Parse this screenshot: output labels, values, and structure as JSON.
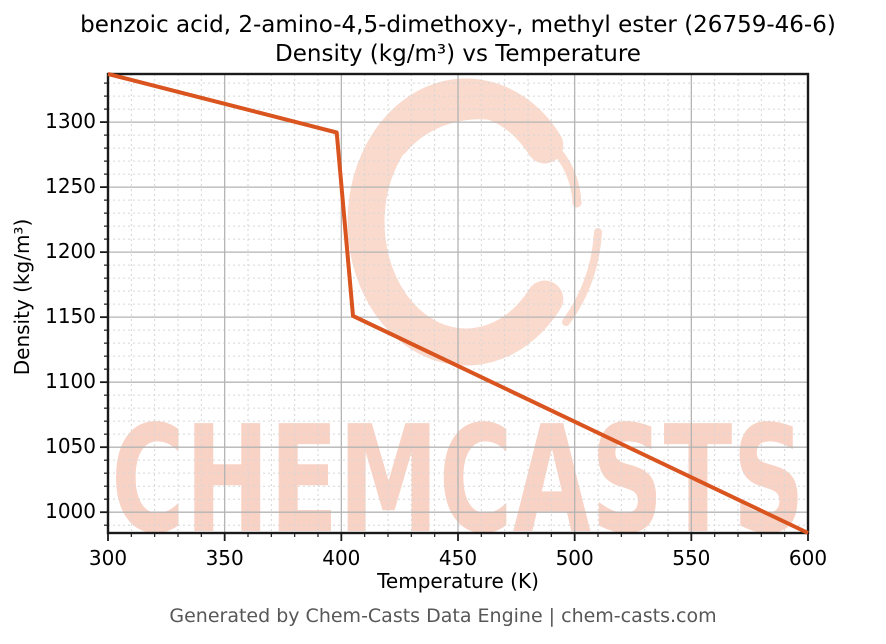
{
  "footer": "Generated by Chem-Casts Data Engine | chem-casts.com",
  "watermark": {
    "text": "CHEMCASTS",
    "logo": "brush-stroke-C",
    "text_color": "#f8d3c5",
    "logo_color": "#f9dacd"
  },
  "chart_data": {
    "type": "line",
    "title_line1": "benzoic acid, 2-amino-4,5-dimethoxy-, methyl ester (26759-46-6)",
    "title_line2": "Density (kg/m³) vs Temperature",
    "xlabel": "Temperature (K)",
    "ylabel": "Density (kg/m³)",
    "xlim": [
      300,
      600
    ],
    "ylim": [
      984,
      1337
    ],
    "xticks": [
      300,
      350,
      400,
      450,
      500,
      550,
      600
    ],
    "yticks": [
      1000,
      1050,
      1100,
      1150,
      1200,
      1250,
      1300
    ],
    "minor_step_x": 10,
    "minor_step_y": 10,
    "grid": true,
    "legend": "none",
    "series": [
      {
        "name": "density",
        "color": "#d9541e",
        "points": [
          [
            300,
            1337
          ],
          [
            398,
            1292
          ],
          [
            405,
            1151
          ],
          [
            600,
            984
          ]
        ]
      }
    ]
  }
}
